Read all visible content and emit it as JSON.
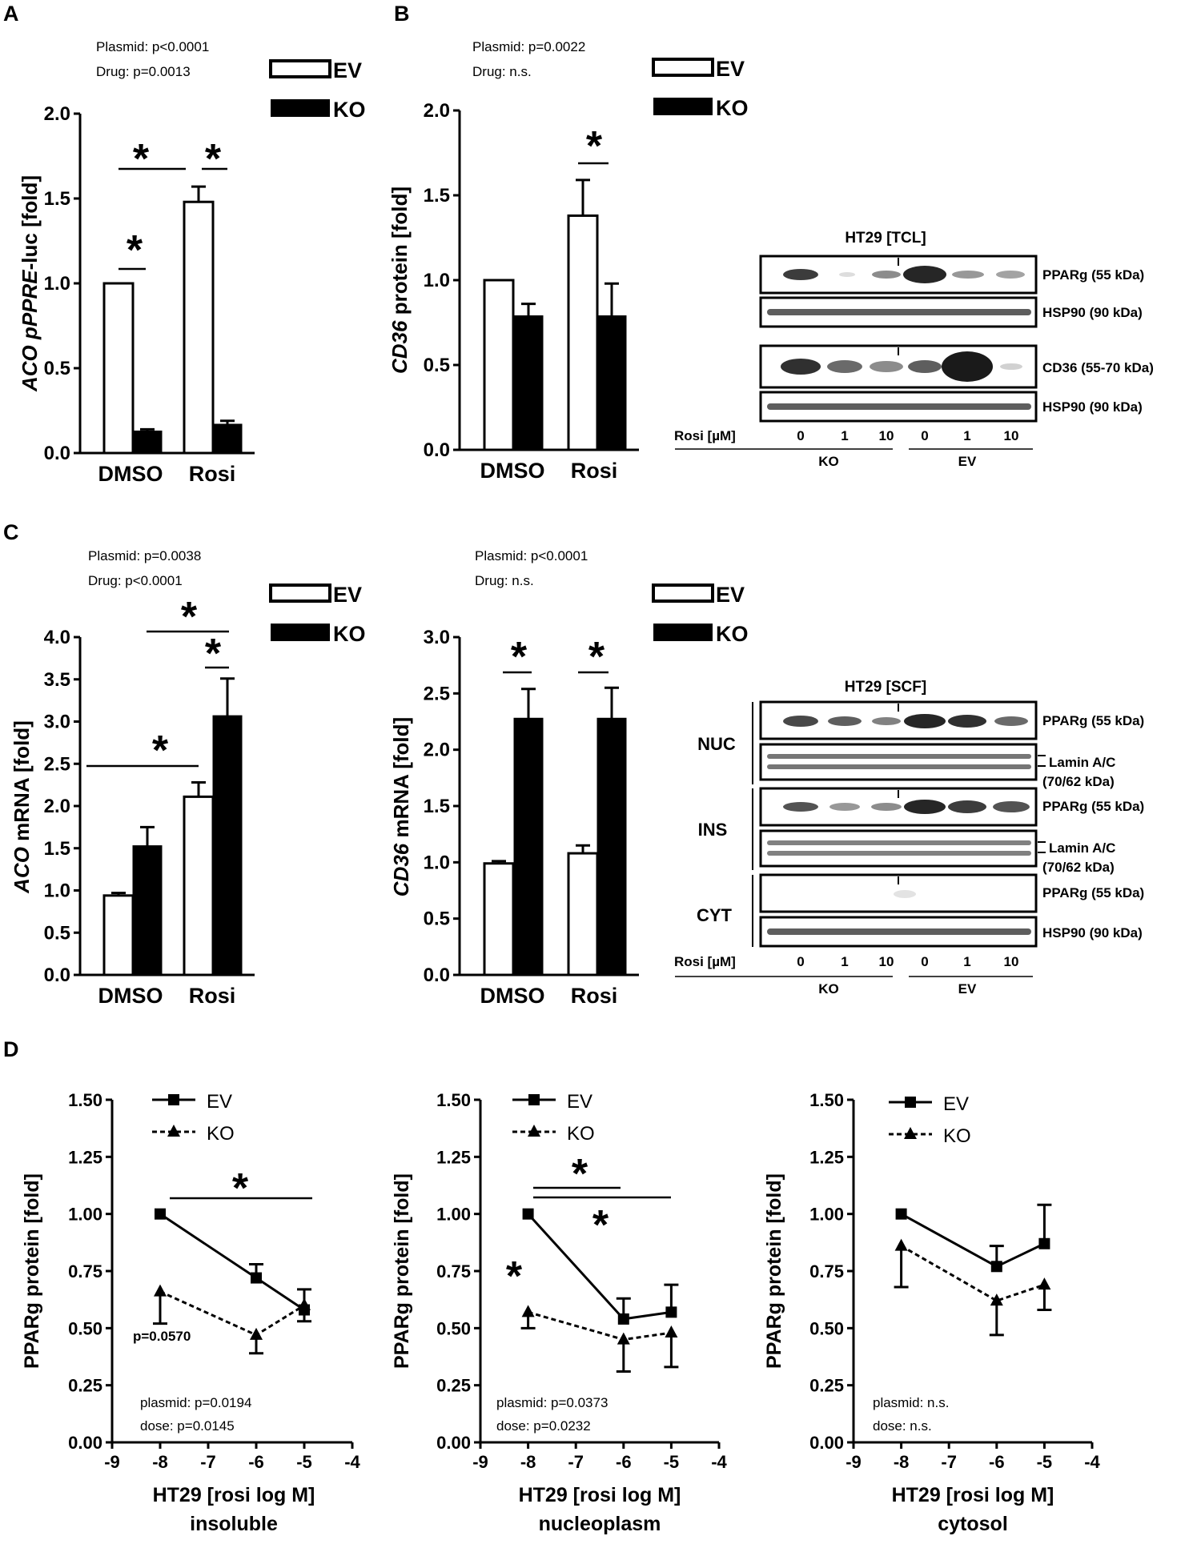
{
  "panels": [
    "A",
    "B",
    "C",
    "D"
  ],
  "legend": {
    "ev": "EV",
    "ko": "KO"
  },
  "stats": {
    "a": [
      "Plasmid: p<0.0001",
      "Drug: p=0.0013"
    ],
    "b": [
      "Plasmid: p=0.0022",
      "Drug: n.s."
    ],
    "c1": [
      "Plasmid: p=0.0038",
      "Drug: p<0.0001"
    ],
    "c2": [
      "Plasmid: p<0.0001",
      "Drug: n.s."
    ],
    "d1": [
      "plasmid: p=0.0194",
      "dose: p=0.0145"
    ],
    "d2": [
      "plasmid: p=0.0373",
      "dose: p=0.0232"
    ],
    "d3": [
      "plasmid: n.s.",
      "dose: n.s."
    ]
  },
  "d1_extra": "p=0.0570",
  "star": "*",
  "blot_tcl": {
    "title": "HT29 [TCL]",
    "bands": [
      "PPARg (55 kDa)",
      "HSP90 (90 kDa)",
      "CD36 (55-70 kDa)",
      "HSP90 (90 kDa)"
    ],
    "rosi_label": "Rosi [µM]",
    "doses": [
      "0",
      "1",
      "10",
      "0",
      "1",
      "10"
    ],
    "groups": [
      "KO",
      "EV"
    ]
  },
  "blot_scf": {
    "title": "HT29 [SCF]",
    "fractions": [
      "NUC",
      "INS",
      "CYT"
    ],
    "bands": [
      "PPARg (55 kDa)",
      "Lamin A/C",
      "(70/62 kDa)",
      "PPARg (55 kDa)",
      "Lamin A/C",
      "(70/62 kDa)",
      "PPARg (55 kDa)",
      "HSP90 (90 kDa)"
    ],
    "rosi_label": "Rosi [µM]",
    "doses": [
      "0",
      "1",
      "10",
      "0",
      "1",
      "10"
    ],
    "groups": [
      "KO",
      "EV"
    ]
  },
  "colors": {
    "ev_fill": "#ffffff",
    "ko_fill": "#000000",
    "band": "#1a1a1a"
  },
  "chart_data": [
    {
      "id": "A",
      "type": "bar",
      "categories": [
        "DMSO",
        "Rosi"
      ],
      "ylabel_parts": [
        [
          "ACO pPPRE",
          "italic"
        ],
        [
          "-luc  [fold]",
          "normal"
        ]
      ],
      "ylim": [
        0,
        2.0
      ],
      "yticks": [
        "0.0",
        "0.5",
        "1.0",
        "1.5",
        "2.0"
      ],
      "series": [
        {
          "name": "EV",
          "values": [
            1.0,
            1.48
          ],
          "errors": [
            0,
            0.09
          ]
        },
        {
          "name": "KO",
          "values": [
            0.13,
            0.17
          ],
          "errors": [
            0.01,
            0.02
          ]
        }
      ],
      "significance": [
        "DMSO: EV vs KO",
        "Rosi: EV vs KO",
        "EV: DMSO vs Rosi"
      ]
    },
    {
      "id": "B",
      "type": "bar",
      "categories": [
        "DMSO",
        "Rosi"
      ],
      "ylabel_parts": [
        [
          "CD36",
          "italic"
        ],
        [
          " protein  [fold]",
          "normal"
        ]
      ],
      "ylim": [
        0,
        2.0
      ],
      "yticks": [
        "0.0",
        "0.5",
        "1.0",
        "1.5",
        "2.0"
      ],
      "series": [
        {
          "name": "EV",
          "values": [
            1.0,
            1.38
          ],
          "errors": [
            0,
            0.21
          ]
        },
        {
          "name": "KO",
          "values": [
            0.79,
            0.79
          ],
          "errors": [
            0.07,
            0.19
          ]
        }
      ],
      "significance": [
        "Rosi: EV vs KO"
      ]
    },
    {
      "id": "C1",
      "type": "bar",
      "categories": [
        "DMSO",
        "Rosi"
      ],
      "ylabel_parts": [
        [
          "ACO",
          "italic"
        ],
        [
          " mRNA  [fold]",
          "normal"
        ]
      ],
      "ylim": [
        0,
        4.0
      ],
      "yticks": [
        "0.0",
        "0.5",
        "1.0",
        "1.5",
        "2.0",
        "2.5",
        "3.0",
        "3.5",
        "4.0"
      ],
      "series": [
        {
          "name": "EV",
          "values": [
            0.94,
            2.11
          ],
          "errors": [
            0.03,
            0.17
          ]
        },
        {
          "name": "KO",
          "values": [
            1.53,
            3.07
          ],
          "errors": [
            0.22,
            0.44
          ]
        }
      ],
      "significance": [
        "EV: DMSO vs Rosi",
        "KO: DMSO vs Rosi",
        "Rosi: EV vs KO"
      ]
    },
    {
      "id": "C2",
      "type": "bar",
      "categories": [
        "DMSO",
        "Rosi"
      ],
      "ylabel_parts": [
        [
          "CD36",
          "italic"
        ],
        [
          " mRNA  [fold]",
          "normal"
        ]
      ],
      "ylim": [
        0,
        3.0
      ],
      "yticks": [
        "0.0",
        "0.5",
        "1.0",
        "1.5",
        "2.0",
        "2.5",
        "3.0"
      ],
      "series": [
        {
          "name": "EV",
          "values": [
            0.99,
            1.08
          ],
          "errors": [
            0.02,
            0.07
          ]
        },
        {
          "name": "KO",
          "values": [
            2.28,
            2.28
          ],
          "errors": [
            0.26,
            0.27
          ]
        }
      ],
      "significance": [
        "DMSO: EV vs KO",
        "Rosi: EV vs KO"
      ]
    },
    {
      "id": "D1",
      "type": "line",
      "xlabel": "HT29 [rosi log M]",
      "xsub": "insoluble",
      "ylabel": "PPARg protein [fold]",
      "xlim": [
        -9,
        -4
      ],
      "xticks": [
        "-9",
        "-8",
        "-7",
        "-6",
        "-5",
        "-4"
      ],
      "ylim": [
        0,
        1.5
      ],
      "yticks": [
        "0.00",
        "0.25",
        "0.50",
        "0.75",
        "1.00",
        "1.25",
        "1.50"
      ],
      "x": [
        -8,
        -6,
        -5
      ],
      "series": [
        {
          "name": "EV",
          "values": [
            1.0,
            0.72,
            0.58
          ],
          "errors": [
            0,
            0.06,
            0.09
          ],
          "error_dir": "up"
        },
        {
          "name": "KO",
          "values": [
            0.66,
            0.47,
            0.6
          ],
          "errors": [
            0.14,
            0.08,
            0.07
          ],
          "error_dir": "down"
        }
      ]
    },
    {
      "id": "D2",
      "type": "line",
      "xlabel": "HT29 [rosi log M]",
      "xsub": "nucleoplasm",
      "ylabel": "PPARg protein [fold]",
      "xlim": [
        -9,
        -4
      ],
      "xticks": [
        "-9",
        "-8",
        "-7",
        "-6",
        "-5",
        "-4"
      ],
      "ylim": [
        0,
        1.5
      ],
      "yticks": [
        "0.00",
        "0.25",
        "0.50",
        "0.75",
        "1.00",
        "1.25",
        "1.50"
      ],
      "x": [
        -8,
        -6,
        -5
      ],
      "series": [
        {
          "name": "EV",
          "values": [
            1.0,
            0.54,
            0.57
          ],
          "errors": [
            0,
            0.09,
            0.12
          ],
          "error_dir": "up"
        },
        {
          "name": "KO",
          "values": [
            0.57,
            0.45,
            0.48
          ],
          "errors": [
            0.07,
            0.14,
            0.15
          ],
          "error_dir": "down"
        }
      ]
    },
    {
      "id": "D3",
      "type": "line",
      "xlabel": "HT29 [rosi log M]",
      "xsub": "cytosol",
      "ylabel": "PPARg protein [fold]",
      "xlim": [
        -9,
        -4
      ],
      "xticks": [
        "-9",
        "-8",
        "-7",
        "-6",
        "-5",
        "-4"
      ],
      "ylim": [
        0,
        1.5
      ],
      "yticks": [
        "0.00",
        "0.25",
        "0.50",
        "0.75",
        "1.00",
        "1.25",
        "1.50"
      ],
      "x": [
        -8,
        -6,
        -5
      ],
      "series": [
        {
          "name": "EV",
          "values": [
            1.0,
            0.77,
            0.87
          ],
          "errors": [
            0,
            0.09,
            0.17
          ],
          "error_dir": "up"
        },
        {
          "name": "KO",
          "values": [
            0.86,
            0.62,
            0.69
          ],
          "errors": [
            0.18,
            0.15,
            0.11
          ],
          "error_dir": "down"
        }
      ]
    }
  ]
}
